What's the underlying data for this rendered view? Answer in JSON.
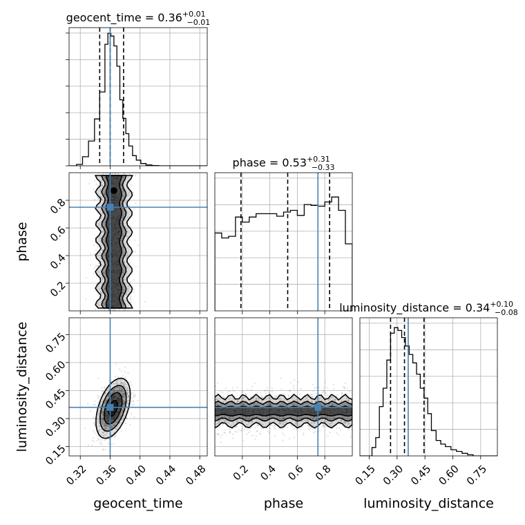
{
  "chart_data": {
    "type": "corner",
    "parameters": [
      "geocent_time",
      "phase",
      "luminosity_distance"
    ],
    "truth": {
      "geocent_time": 0.36,
      "phase": 0.75,
      "luminosity_distance": 0.36
    },
    "truth_color": "#4682b4",
    "axes": {
      "geocent_time": {
        "label": "geocent_time",
        "range": [
          0.305,
          0.49
        ],
        "ticks": [
          0.32,
          0.36,
          0.4,
          0.44,
          0.48
        ],
        "tick_labels": [
          "0.32",
          "0.36",
          "0.40",
          "0.44",
          "0.48"
        ]
      },
      "phase": {
        "label": "phase",
        "range": [
          0.0,
          1.0
        ],
        "ticks": [
          0.2,
          0.4,
          0.6,
          0.8
        ],
        "tick_labels": [
          "0.2",
          "0.4",
          "0.6",
          "0.8"
        ]
      },
      "luminosity_distance": {
        "label": "luminosity_distance",
        "range": [
          0.1,
          0.84
        ],
        "ticks": [
          0.15,
          0.3,
          0.45,
          0.6,
          0.75
        ],
        "tick_labels": [
          "0.15",
          "0.30",
          "0.45",
          "0.60",
          "0.75"
        ]
      }
    },
    "marginals": [
      {
        "param": "geocent_time",
        "title_name": "geocent_time",
        "median": "0.36",
        "plus": "+0.01",
        "minus": "−0.01",
        "quantiles": [
          0.346,
          0.36,
          0.378
        ],
        "bin_edges": [
          0.305,
          0.315,
          0.323,
          0.331,
          0.339,
          0.346,
          0.353,
          0.357,
          0.361,
          0.365,
          0.369,
          0.373,
          0.377,
          0.381,
          0.385,
          0.39,
          0.395,
          0.401,
          0.408,
          0.416,
          0.425,
          0.49
        ],
        "counts": [
          0,
          0.5,
          3.2,
          8.8,
          16.6,
          26.2,
          43.1,
          47.0,
          46.0,
          42.5,
          35.3,
          23.4,
          16.8,
          11.4,
          7.0,
          3.6,
          2.0,
          0.8,
          0.3,
          0.1,
          0
        ],
        "ymax": 49
      },
      {
        "param": "phase",
        "title_name": "phase",
        "median": "0.53",
        "plus": "+0.31",
        "minus": "−0.33",
        "quantiles": [
          0.19,
          0.53,
          0.835
        ],
        "bin_edges": [
          0.0,
          0.05,
          0.1,
          0.15,
          0.2,
          0.25,
          0.3,
          0.35,
          0.4,
          0.45,
          0.5,
          0.55,
          0.6,
          0.65,
          0.7,
          0.75,
          0.8,
          0.85,
          0.9,
          0.95,
          1.0
        ],
        "counts": [
          93,
          87,
          89,
          112,
          106,
          112,
          116,
          116,
          116,
          113,
          118,
          120,
          114,
          127,
          126,
          125,
          130,
          136,
          120,
          80
        ],
        "ymax": 165
      },
      {
        "param": "luminosity_distance",
        "title_name": "luminosity_distance",
        "median": "0.34",
        "plus": "+0.10",
        "minus": "−0.08",
        "quantiles": [
          0.265,
          0.34,
          0.445
        ],
        "bin_edges": [
          0.1,
          0.165,
          0.185,
          0.205,
          0.225,
          0.245,
          0.265,
          0.285,
          0.305,
          0.325,
          0.345,
          0.365,
          0.385,
          0.405,
          0.425,
          0.445,
          0.465,
          0.485,
          0.51,
          0.535,
          0.56,
          0.59,
          0.62,
          0.65,
          0.68,
          0.71,
          0.84
        ],
        "counts": [
          0,
          3.0,
          6.5,
          17.5,
          24.0,
          34.0,
          43.5,
          45.5,
          44.5,
          42.0,
          39.0,
          36.0,
          33.0,
          29.0,
          24.0,
          20.5,
          15.0,
          9.0,
          5.5,
          4.2,
          3.3,
          2.2,
          1.6,
          0.9,
          0.4,
          0
        ],
        "ymax": 49
      }
    ],
    "joint": [
      {
        "x": "geocent_time",
        "y": "phase",
        "center": [
          0.365,
          0.5
        ],
        "sigma": [
          0.011,
          0.29
        ],
        "scatter_shape": "uniform-y",
        "peak": [
          0.365,
          0.87
        ],
        "contour_widths": [
          0.009,
          0.014,
          0.021
        ],
        "contour_y_span": [
          0.02,
          0.98
        ]
      },
      {
        "x": "geocent_time",
        "y": "luminosity_distance",
        "center": [
          0.364,
          0.355
        ],
        "sigma": [
          0.01,
          0.07
        ],
        "corr": 0.45,
        "contour_radii": [
          0.6,
          1.2,
          1.75,
          2.3
        ]
      },
      {
        "x": "phase",
        "y": "luminosity_distance",
        "center": [
          0.5,
          0.34
        ],
        "sigma": [
          0.29,
          0.055
        ],
        "scatter_shape": "uniform-x",
        "contour_widths": [
          0.022,
          0.045,
          0.075
        ]
      }
    ]
  }
}
